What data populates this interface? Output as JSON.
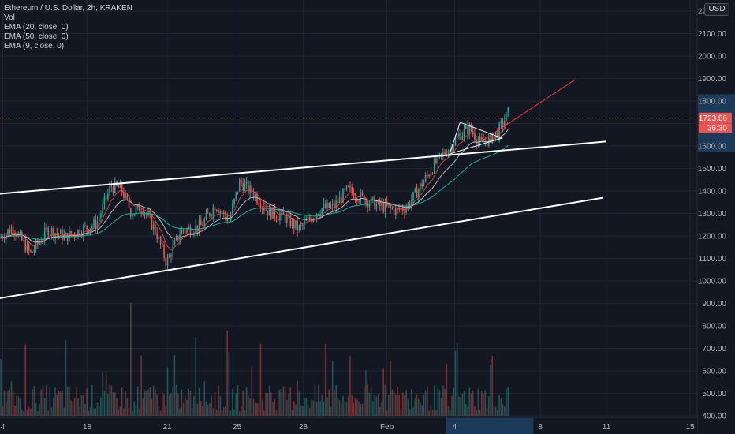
{
  "legend": {
    "symbol": "Ethereum / U.S. Dollar, 2h, KRAKEN",
    "volume": "Vol",
    "ema_20": "EMA (20, close, 0)",
    "ema_50": "EMA (50, close, 0)",
    "ema_9": "EMA (9, close, 0)"
  },
  "currency_button": "USD",
  "colors": {
    "background": "#131722",
    "up": "#26a69a",
    "down": "#ef5350",
    "ema_20": "#b2b5be",
    "ema_50": "#22ab94",
    "ema_9": "#ef5350",
    "trendline": "#ffffff",
    "projection": "#f23645"
  },
  "chart_data": {
    "type": "candlestick",
    "title": "Ethereum / U.S. Dollar, 2h, KRAKEN",
    "y_axis": {
      "labels": [
        "400.00",
        "500.00",
        "600.00",
        "700.00",
        "800.00",
        "900.00",
        "1000.00",
        "1100.00",
        "1200.00",
        "1300.00",
        "1400.00",
        "1500.00",
        "1600.00",
        "1700.00",
        "1800.00",
        "1900.00",
        "2000.00",
        "2100.00",
        "2200.00"
      ],
      "ylim": [
        400,
        2210
      ],
      "current_price": "1723.86",
      "countdown": "36:30"
    },
    "x_axis": {
      "labels": [
        "4",
        "18",
        "21",
        "25",
        "28",
        "Feb",
        "4",
        "8",
        "11",
        "15"
      ],
      "highlighted_label": "4"
    },
    "price_path": [
      {
        "t": 0,
        "p": 1190
      },
      {
        "t": 0.02,
        "p": 1240
      },
      {
        "t": 0.045,
        "p": 1120
      },
      {
        "t": 0.07,
        "p": 1230
      },
      {
        "t": 0.095,
        "p": 1195
      },
      {
        "t": 0.12,
        "p": 1230
      },
      {
        "t": 0.14,
        "p": 1255
      },
      {
        "t": 0.16,
        "p": 1420
      },
      {
        "t": 0.175,
        "p": 1410
      },
      {
        "t": 0.19,
        "p": 1300
      },
      {
        "t": 0.205,
        "p": 1330
      },
      {
        "t": 0.225,
        "p": 1220
      },
      {
        "t": 0.24,
        "p": 1080
      },
      {
        "t": 0.26,
        "p": 1220
      },
      {
        "t": 0.29,
        "p": 1245
      },
      {
        "t": 0.31,
        "p": 1340
      },
      {
        "t": 0.33,
        "p": 1270
      },
      {
        "t": 0.345,
        "p": 1440
      },
      {
        "t": 0.365,
        "p": 1390
      },
      {
        "t": 0.385,
        "p": 1310
      },
      {
        "t": 0.41,
        "p": 1280
      },
      {
        "t": 0.43,
        "p": 1230
      },
      {
        "t": 0.46,
        "p": 1320
      },
      {
        "t": 0.48,
        "p": 1330
      },
      {
        "t": 0.5,
        "p": 1405
      },
      {
        "t": 0.52,
        "p": 1370
      },
      {
        "t": 0.54,
        "p": 1340
      },
      {
        "t": 0.57,
        "p": 1310
      },
      {
        "t": 0.585,
        "p": 1330
      },
      {
        "t": 0.6,
        "p": 1400
      },
      {
        "t": 0.625,
        "p": 1520
      },
      {
        "t": 0.645,
        "p": 1590
      },
      {
        "t": 0.66,
        "p": 1650
      },
      {
        "t": 0.675,
        "p": 1680
      },
      {
        "t": 0.69,
        "p": 1610
      },
      {
        "t": 0.705,
        "p": 1630
      },
      {
        "t": 0.715,
        "p": 1660
      },
      {
        "t": 0.73,
        "p": 1745
      }
    ],
    "volume_range": [
      400,
      805
    ],
    "trendlines": [
      {
        "name": "upper-channel",
        "from": {
          "t": -0.01,
          "p": 1385
        },
        "to": {
          "t": 0.87,
          "p": 1620
        }
      },
      {
        "name": "lower-channel",
        "from": {
          "t": -0.01,
          "p": 918
        },
        "to": {
          "t": 0.865,
          "p": 1370
        }
      },
      {
        "name": "projection",
        "from": {
          "t": 0.69,
          "p": 1620
        },
        "to": {
          "t": 0.825,
          "p": 1895
        }
      }
    ],
    "legend_placement": "top-left"
  }
}
